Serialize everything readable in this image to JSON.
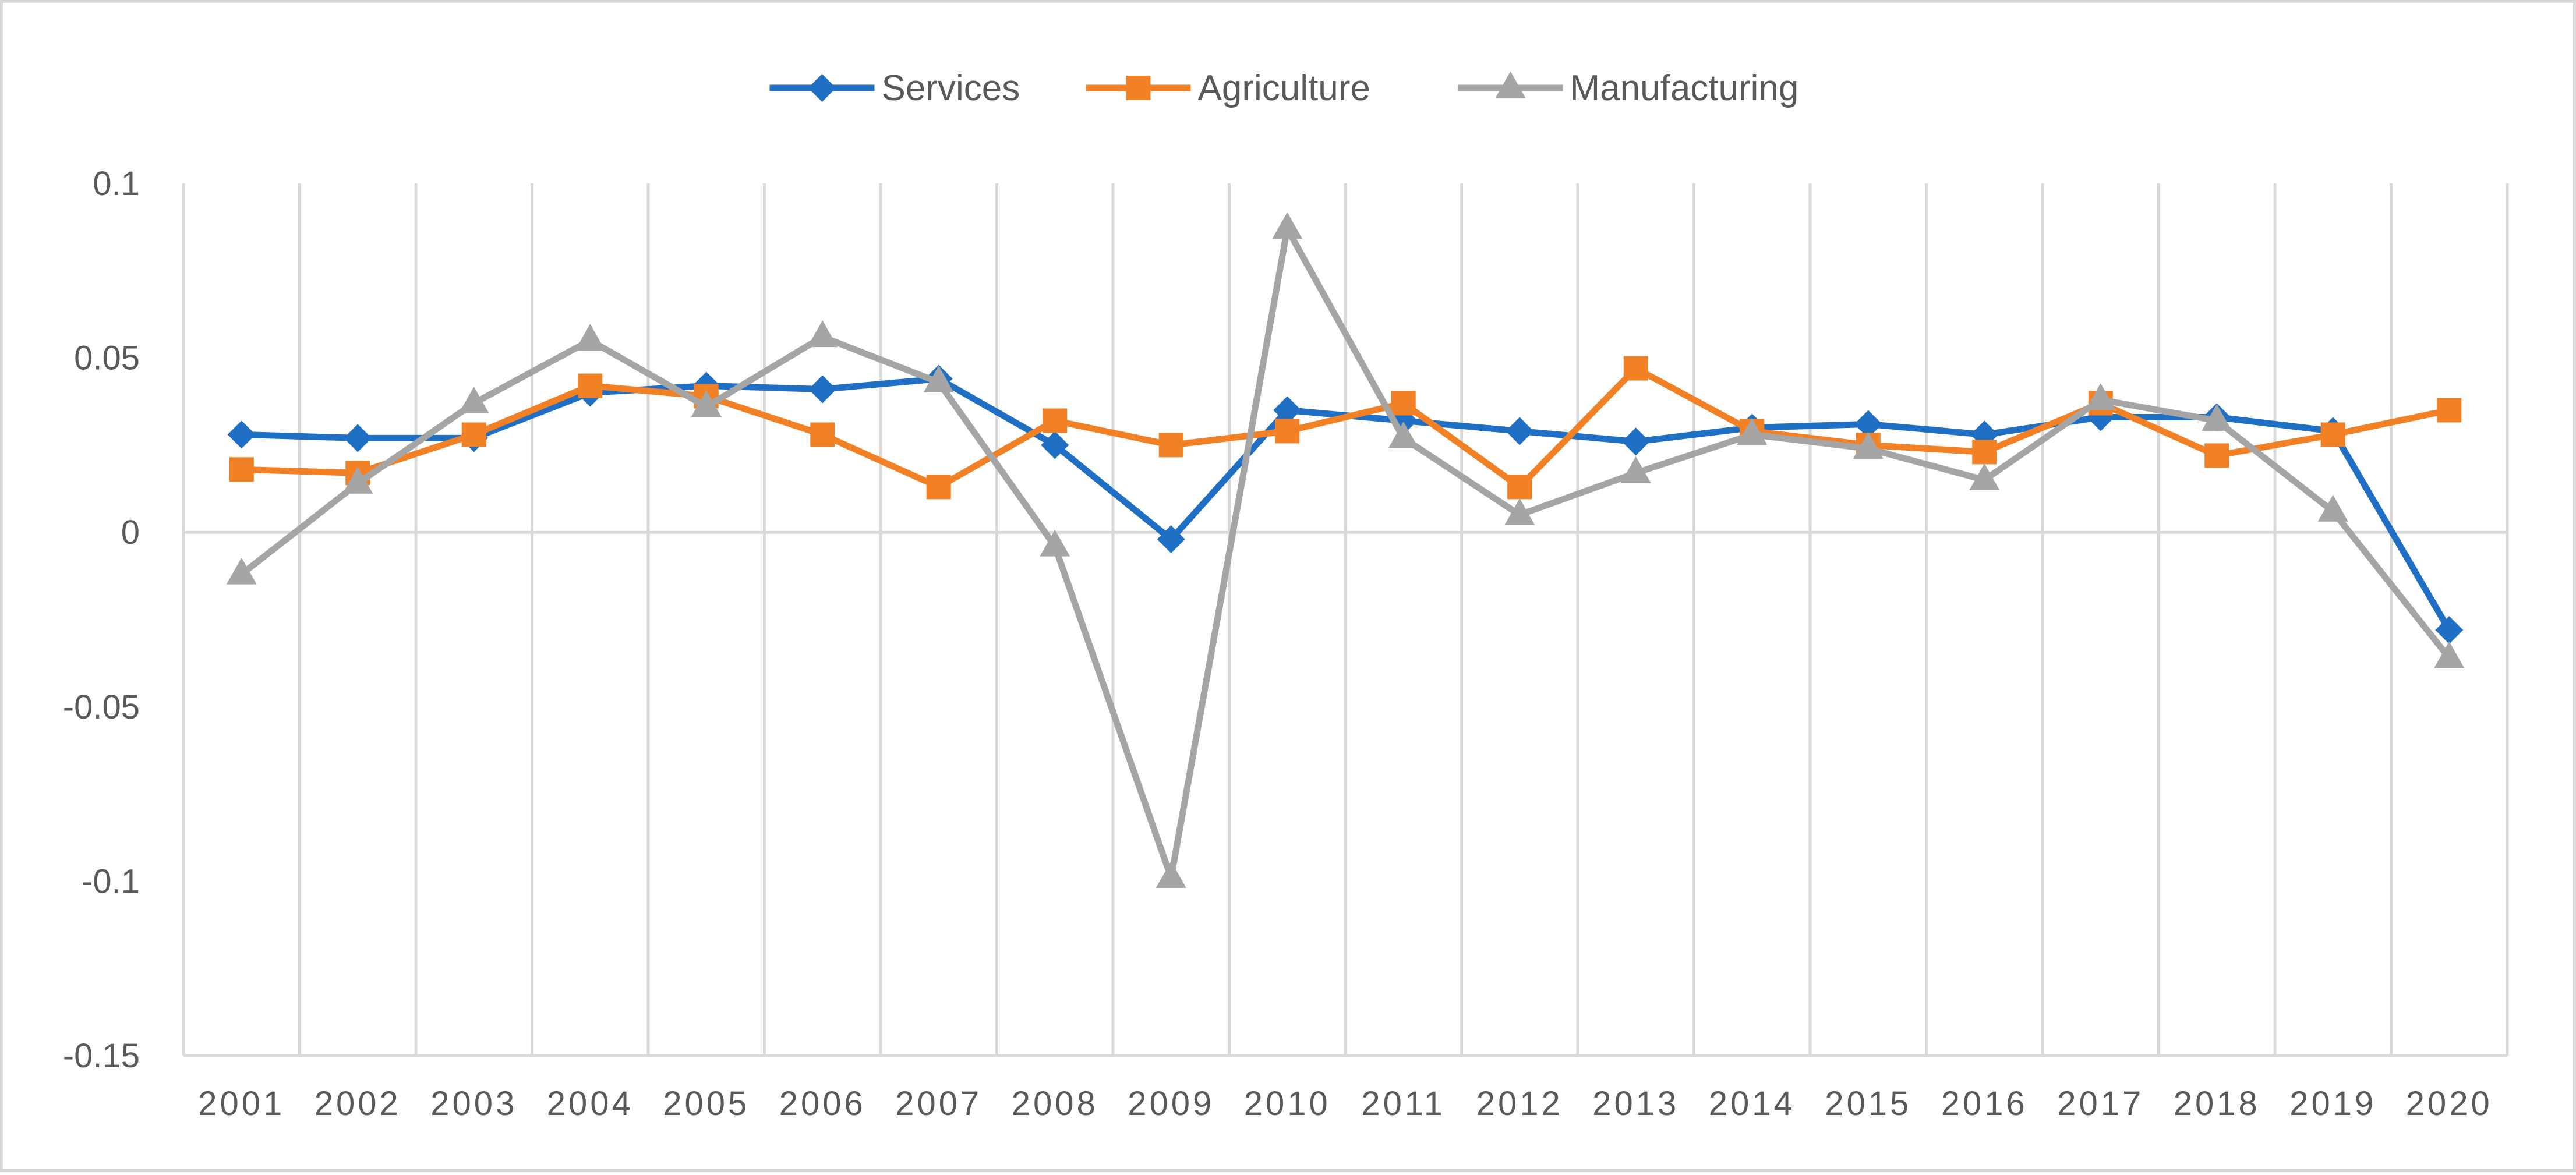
{
  "chart_data": {
    "type": "line",
    "title": "",
    "xlabel": "",
    "ylabel": "",
    "categories": [
      "2001",
      "2002",
      "2003",
      "2004",
      "2005",
      "2006",
      "2007",
      "2008",
      "2009",
      "2010",
      "2011",
      "2012",
      "2013",
      "2014",
      "2015",
      "2016",
      "2017",
      "2018",
      "2019",
      "2020"
    ],
    "ylim": [
      -0.15,
      0.1
    ],
    "yticks": [
      0.1,
      0.05,
      0,
      -0.05,
      -0.1,
      -0.15
    ],
    "ytick_labels": [
      "0.1",
      "0.05",
      "0",
      "-0.05",
      "-0.1",
      "-0.15"
    ],
    "grid": "vertical",
    "legend_position": "top-center",
    "series": [
      {
        "name": "Services",
        "color": "#1f6fc5",
        "marker": "diamond",
        "values": [
          0.028,
          0.027,
          0.027,
          0.04,
          0.042,
          0.041,
          0.044,
          0.025,
          -0.002,
          0.035,
          0.032,
          0.029,
          0.026,
          0.03,
          0.031,
          0.028,
          0.033,
          0.033,
          0.029,
          -0.028
        ]
      },
      {
        "name": "Agriculture",
        "color": "#f28025",
        "marker": "square",
        "values": [
          0.018,
          0.017,
          0.028,
          0.042,
          0.039,
          0.028,
          0.013,
          0.032,
          0.025,
          0.029,
          0.037,
          0.013,
          0.047,
          0.029,
          0.025,
          0.023,
          0.037,
          0.022,
          0.028,
          0.035
        ]
      },
      {
        "name": "Manufacturing",
        "color": "#a5a5a5",
        "marker": "triangle",
        "values": [
          -0.012,
          0.014,
          0.037,
          0.055,
          0.036,
          0.056,
          0.043,
          -0.004,
          -0.099,
          0.087,
          0.027,
          0.005,
          0.017,
          0.028,
          0.024,
          0.015,
          0.038,
          0.032,
          0.006,
          -0.036
        ]
      }
    ]
  }
}
